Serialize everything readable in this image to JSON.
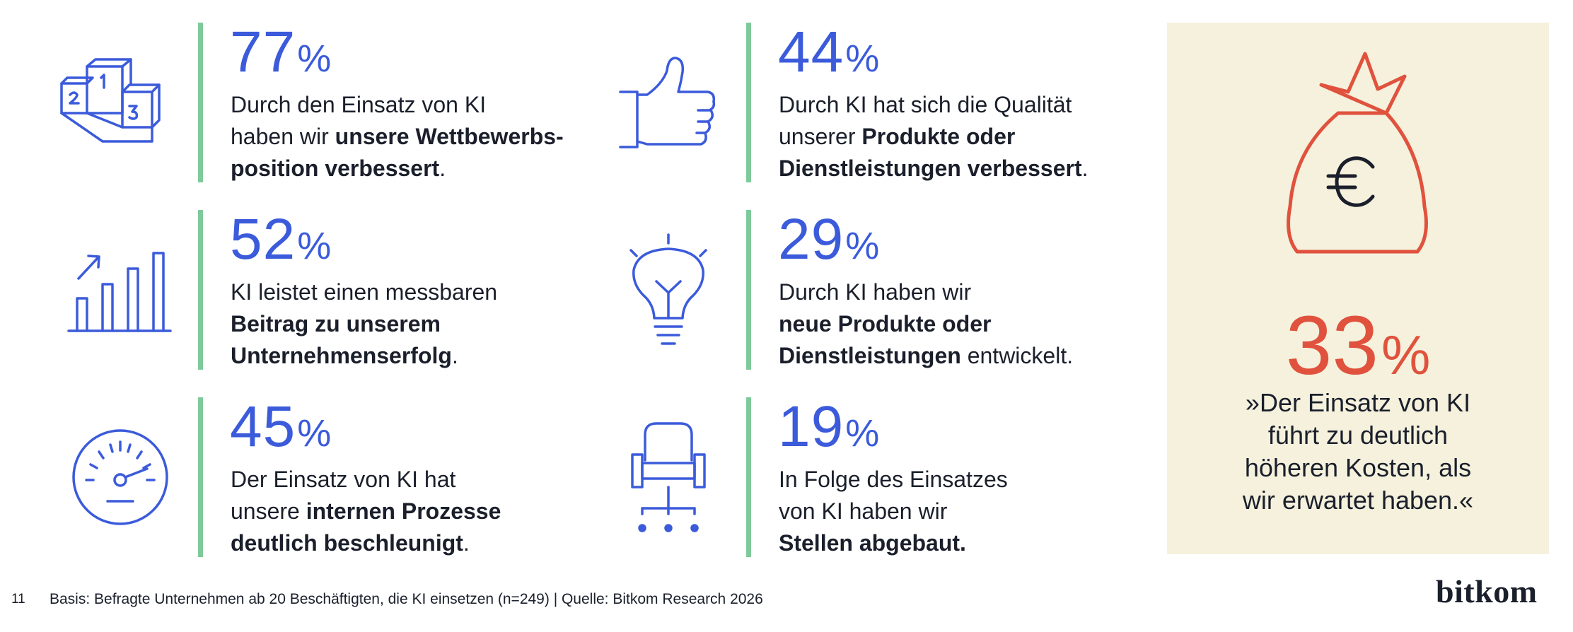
{
  "stats": [
    {
      "value": "77",
      "unit": "%",
      "icon": "podium-icon",
      "text": [
        {
          "t": "Durch den Einsatz von KI",
          "b": false
        },
        {
          "br": true
        },
        {
          "t": "haben wir ",
          "b": false
        },
        {
          "t": "unsere Wettbewerbs-",
          "b": true
        },
        {
          "br": true
        },
        {
          "t": "position verbessert",
          "b": true
        },
        {
          "t": ".",
          "b": false
        }
      ]
    },
    {
      "value": "52",
      "unit": "%",
      "icon": "bar-chart-icon",
      "text": [
        {
          "t": "KI leistet einen messbaren",
          "b": false
        },
        {
          "br": true
        },
        {
          "t": "Beitrag zu unserem",
          "b": true
        },
        {
          "br": true
        },
        {
          "t": "Unternehmenserfolg",
          "b": true
        },
        {
          "t": ".",
          "b": false
        }
      ]
    },
    {
      "value": "45",
      "unit": "%",
      "icon": "speedometer-icon",
      "text": [
        {
          "t": "Der Einsatz von KI hat",
          "b": false
        },
        {
          "br": true
        },
        {
          "t": "unsere ",
          "b": false
        },
        {
          "t": "internen Prozesse",
          "b": true
        },
        {
          "br": true
        },
        {
          "t": "deutlich beschleunigt",
          "b": true
        },
        {
          "t": ".",
          "b": false
        }
      ]
    },
    {
      "value": "44",
      "unit": "%",
      "icon": "thumbs-up-icon",
      "text": [
        {
          "t": "Durch KI hat sich die Qualität",
          "b": false
        },
        {
          "br": true
        },
        {
          "t": "unserer ",
          "b": false
        },
        {
          "t": "Produkte oder",
          "b": true
        },
        {
          "br": true
        },
        {
          "t": "Dienstleistungen verbessert",
          "b": true
        },
        {
          "t": ".",
          "b": false
        }
      ]
    },
    {
      "value": "29",
      "unit": "%",
      "icon": "lightbulb-icon",
      "text": [
        {
          "t": "Durch KI haben wir",
          "b": false
        },
        {
          "br": true
        },
        {
          "t": "neue Produkte oder",
          "b": true
        },
        {
          "br": true
        },
        {
          "t": "Dienstleistungen",
          "b": true
        },
        {
          "t": " entwickelt.",
          "b": false
        }
      ]
    },
    {
      "value": "19",
      "unit": "%",
      "icon": "office-chair-icon",
      "text": [
        {
          "t": "In Folge des Einsatzes",
          "b": false
        },
        {
          "br": true
        },
        {
          "t": "von KI haben wir",
          "b": false
        },
        {
          "br": true
        },
        {
          "t": "Stellen abgebaut.",
          "b": true
        }
      ]
    }
  ],
  "highlight": {
    "icon": "money-bag-euro-icon",
    "value": "33",
    "unit": "%",
    "quote": [
      "»Der Einsatz von KI",
      "führt zu deutlich",
      "höheren Kosten, als",
      "wir erwartet haben.«"
    ]
  },
  "footer": {
    "page_number": "11",
    "source": "Basis: Befragte Unternehmen ab 20 Beschäftigten, die KI einsetzen (n=249) | Quelle: Bitkom Research 2026"
  },
  "logo": "bitkom",
  "colors": {
    "accent_blue": "#3b5bdb",
    "accent_green": "#7fca9a",
    "accent_red": "#e0523d",
    "panel_bg": "#f5f1dd",
    "text": "#1a1f2b"
  }
}
